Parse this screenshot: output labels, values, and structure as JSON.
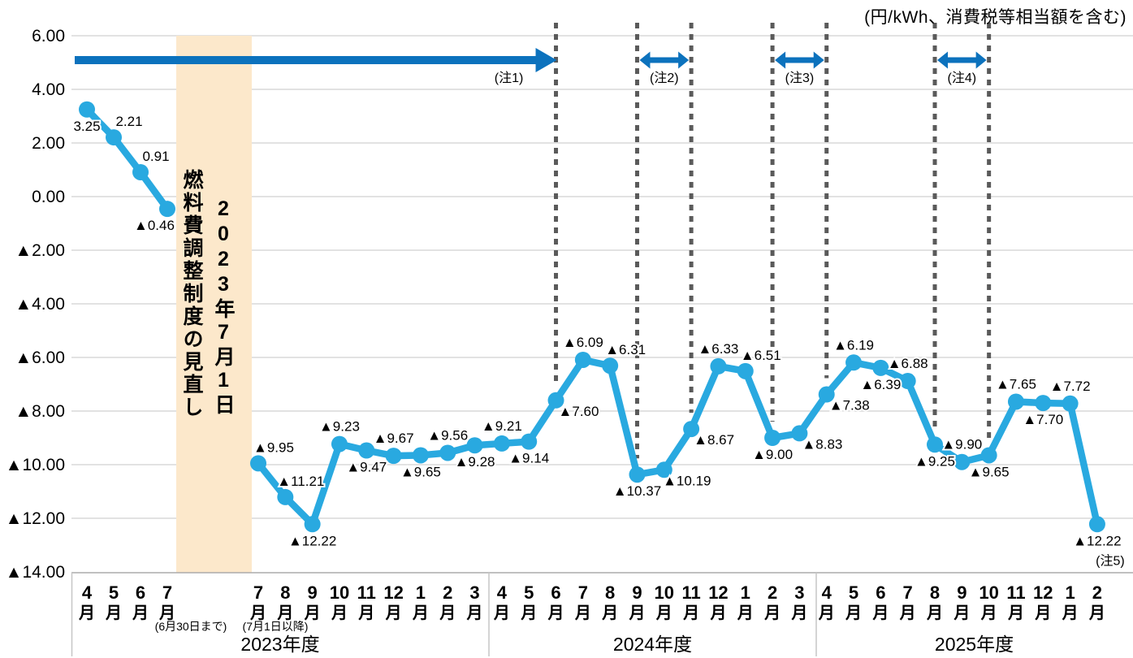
{
  "title": "(円/kWh、消費税等相当額を含む)",
  "chart_data": {
    "type": "line",
    "unit_note": "(円/kWh、消費税等相当額を含む)",
    "ylabel": "円/kWh",
    "ylim": [
      -14,
      6
    ],
    "grid": true,
    "y_tick_values": [
      6,
      4,
      2,
      0,
      -2,
      -4,
      -6,
      -8,
      -10,
      -12,
      -14
    ],
    "y_tick_labels": [
      "6.00",
      "4.00",
      "2.00",
      "0.00",
      "▲2.00",
      "▲4.00",
      "▲6.00",
      "▲8.00",
      "▲10.00",
      "▲12.00",
      "▲14.00"
    ],
    "revision_band": {
      "date": "2023年7月1日",
      "title": "燃料費調整制度の見直し"
    },
    "pre_revision": {
      "note": "(6月30日まで)",
      "months": [
        "4月",
        "5月",
        "6月",
        "7月"
      ],
      "values": [
        3.25,
        2.21,
        0.91,
        -0.46
      ],
      "labels": [
        "3.25",
        "2.21",
        "0.91",
        "▲0.46"
      ],
      "label_pos": [
        "below",
        "above-right",
        "above-right",
        "below-left"
      ]
    },
    "post_revision": {
      "note": "(7月1日以降)",
      "months": [
        "7月",
        "8月",
        "9月",
        "10月",
        "11月",
        "12月",
        "1月",
        "2月",
        "3月",
        "4月",
        "5月",
        "6月",
        "7月",
        "8月",
        "9月",
        "10月",
        "11月",
        "12月",
        "1月",
        "2月",
        "3月",
        "4月",
        "5月",
        "6月",
        "7月",
        "8月",
        "9月",
        "10月",
        "11月",
        "12月",
        "1月",
        "2月"
      ],
      "values": [
        -9.95,
        -11.21,
        -12.22,
        -9.23,
        -9.47,
        -9.67,
        -9.65,
        -9.56,
        -9.28,
        -9.21,
        -9.14,
        -7.6,
        -6.09,
        -6.31,
        -10.37,
        -10.19,
        -8.67,
        -6.33,
        -6.51,
        -9.0,
        -8.83,
        -7.38,
        -6.19,
        -6.39,
        -6.88,
        -9.25,
        -9.9,
        -9.65,
        -7.65,
        -7.7,
        -7.72,
        -12.22
      ],
      "labels": [
        "▲9.95",
        "▲11.21",
        "▲12.22",
        "▲9.23",
        "▲9.47",
        "▲9.67",
        "▲9.65",
        "▲9.56",
        "▲9.28",
        "▲9.21",
        "▲9.14",
        "▲7.60",
        "▲6.09",
        "▲6.31",
        "▲10.37",
        "▲10.19",
        "▲8.67",
        "▲6.33",
        "▲6.51",
        "▲9.00",
        "▲8.83",
        "▲7.38",
        "▲6.19",
        "▲6.39",
        "▲6.88",
        "▲9.25",
        "▲9.90",
        "▲9.65",
        "▲7.65",
        "▲7.70",
        "▲7.72",
        "▲12.22"
      ],
      "label_pos": [
        "above-right",
        "above-right",
        "below",
        "above",
        "below",
        "above",
        "below",
        "above",
        "below",
        "above",
        "below",
        "below-right",
        "above",
        "above-right",
        "below",
        "below-right",
        "below-right",
        "above",
        "above-right",
        "below",
        "below-right",
        "below-right",
        "above",
        "below",
        "above",
        "below",
        "above",
        "below",
        "above",
        "below",
        "above",
        "below"
      ],
      "final_note": "(注5)"
    },
    "fiscal_years": [
      {
        "label": "2023年度"
      },
      {
        "label": "2024年度"
      },
      {
        "label": "2025年度"
      }
    ],
    "dotted_guide_indices": [
      11,
      14,
      16,
      19,
      21,
      25,
      27
    ],
    "annotations": [
      {
        "label": "(注1)",
        "style": "arrow",
        "to_index": 11
      },
      {
        "label": "(注2)",
        "style": "double",
        "from_index": 14,
        "to_index": 16
      },
      {
        "label": "(注3)",
        "style": "double",
        "from_index": 19,
        "to_index": 21
      },
      {
        "label": "(注4)",
        "style": "double",
        "from_index": 25,
        "to_index": 27
      }
    ],
    "colors": {
      "line": "#29A9E0",
      "arrow": "#0C72BD",
      "band": "#FCE8CB",
      "grid": "#D9D9D9",
      "axis": "#ABABAB",
      "divider": "#C6C6C6",
      "dotted": "#5A5A5A",
      "text": "#000000"
    }
  }
}
